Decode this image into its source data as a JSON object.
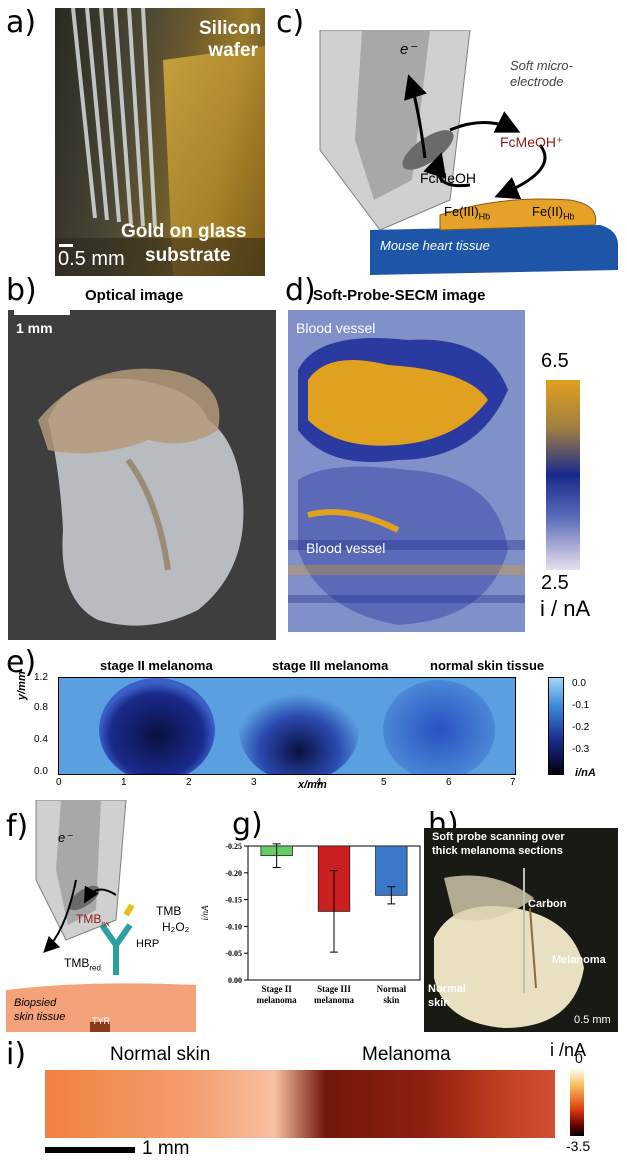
{
  "panels": {
    "a": {
      "label": "a)",
      "silicon_line1": "Silicon",
      "silicon_line2": "wafer",
      "gold_line1": "Gold on glass",
      "gold_line2": "substrate",
      "scale": "0.5 mm"
    },
    "b": {
      "label": "b)",
      "title": "Optical image",
      "scale": "1 mm"
    },
    "c": {
      "label": "c)",
      "electron": "e⁻",
      "soft_line1": "Soft micro-",
      "soft_line2": "electrode",
      "fcmeoh_plus": "FcMeOH⁺",
      "fcmeoh": "FcMeOH",
      "fe3": "Fe(III)",
      "fe3_sub": "Hb",
      "fe2": "Fe(II)",
      "fe2_sub": "Hb",
      "tissue": "Mouse heart tissue"
    },
    "d": {
      "label": "d)",
      "title": "Soft-Probe-SECM image",
      "vessel_top": "Blood vessel",
      "vessel_bottom": "Blood vessel",
      "cb_max": "6.5",
      "cb_min": "2.5",
      "cb_unit": "i / nA",
      "colors": {
        "high": "#e0a020",
        "mid": "#1a2a8c",
        "low": "#e8e0ee"
      }
    },
    "e": {
      "label": "e)",
      "region1": "stage II melanoma",
      "region2": "stage III melanoma",
      "region3": "normal skin tissue",
      "ylabel": "y/mm",
      "xlabel": "x/mm",
      "yticks": [
        "1.2",
        "0.8",
        "0.4",
        "0.0"
      ],
      "xticks": [
        "0",
        "1",
        "2",
        "3",
        "4",
        "5",
        "6",
        "7"
      ],
      "cb_ticks": [
        "0.0",
        "-0.1",
        "-0.2",
        "-0.3"
      ],
      "cb_unit": "i/nA"
    },
    "f": {
      "label": "f)",
      "electron": "e⁻",
      "tmb_ox": "TMB",
      "tmb_ox_sub": "ox",
      "tmb": "TMB",
      "h2o2": "H₂O₂",
      "hrp": "HRP",
      "tmb_red": "TMB",
      "tmb_red_sub": "red",
      "tissue_line1": "Biopsied",
      "tissue_line2": "skin tissue",
      "tyr": "TYR"
    },
    "h": {
      "label": "h)",
      "title_line1": "Soft probe scanning over",
      "title_line2": "thick melanoma sections",
      "carbon": "Carbon",
      "melanoma": "Melanoma",
      "normal_line1": "Normal",
      "normal_line2": "skin",
      "scale": "0.5 mm"
    },
    "i": {
      "label": "i)",
      "normal": "Normal skin",
      "melanoma": "Melanoma",
      "cb_unit": "i /nA",
      "cb_max": "0",
      "cb_min": "-3.5",
      "scale": "1 mm"
    }
  },
  "chart_data": {
    "type": "bar",
    "panel": "g)",
    "categories": [
      "Stage II melanoma",
      "Stage III melanoma",
      "Normal skin"
    ],
    "category_lines": [
      [
        "Stage II",
        "melanoma"
      ],
      [
        "Stage III",
        "melanoma"
      ],
      [
        "Normal",
        "skin"
      ]
    ],
    "values": [
      -0.232,
      -0.128,
      -0.158
    ],
    "errors": [
      0.022,
      0.076,
      0.016
    ],
    "colors": [
      "#66cc66",
      "#cc1f1f",
      "#3a78c8"
    ],
    "ylabel": "i/nA",
    "ylim": [
      0.0,
      -0.25
    ],
    "yticks": [
      "-0.25",
      "-0.20",
      "-0.15",
      "-0.10",
      "-0.05",
      "0.00"
    ],
    "ytick_values": [
      -0.25,
      -0.2,
      -0.15,
      -0.1,
      -0.05,
      0.0
    ]
  }
}
